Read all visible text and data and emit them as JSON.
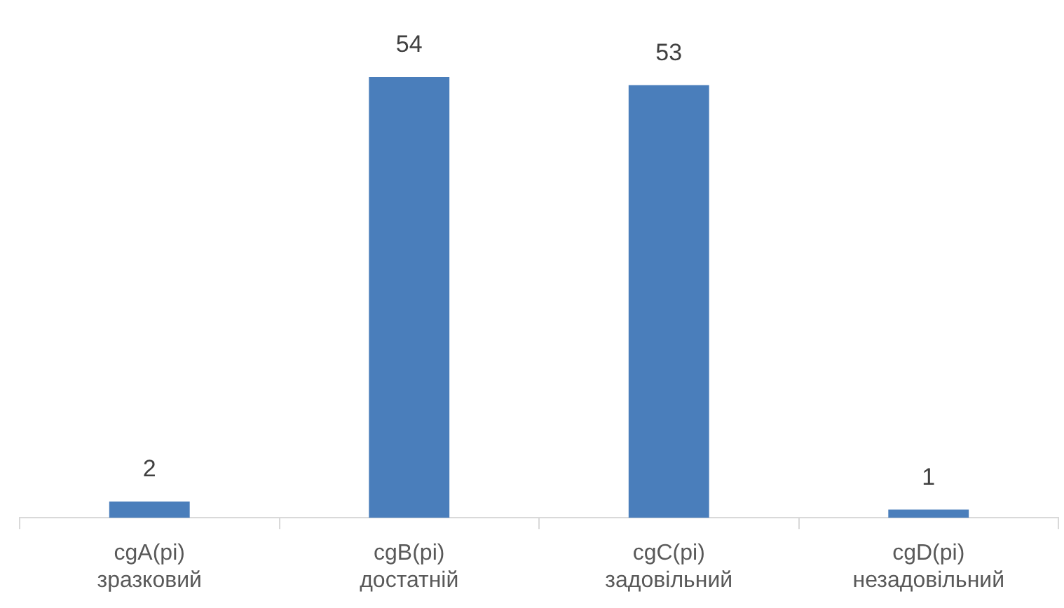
{
  "chart_data": {
    "type": "bar",
    "categories": [
      "cgA(pi)\nзразковий",
      "cgB(pi)\nдостатній",
      "cgC(pi)\nзадовільний",
      "cgD(pi)\nнезадовільний"
    ],
    "values": [
      2,
      54,
      53,
      1
    ],
    "color": "#4a7ebb",
    "data_labels": true,
    "grid": false,
    "legend": false
  }
}
